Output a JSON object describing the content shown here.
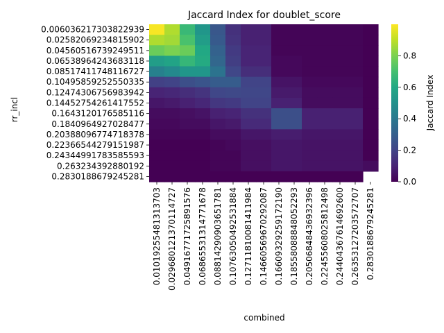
{
  "chart_data": {
    "type": "heatmap",
    "title": "Jaccard Index for doublet_score",
    "xlabel": "combined",
    "ylabel": "rr_incl",
    "x_categories": [
      "0.010192554813137​03",
      "0.029680121370114727",
      "0.04916771725891576",
      "0.06865531314771678",
      "0.08814290903651781",
      "0.10763050492531884",
      "0.12711810081411984",
      "0.14660569670292087",
      "0.16609329259172190",
      "0.18558088848052293",
      "0.20506848436932396",
      "0.22455608025812498",
      "0.24404367614692600",
      "0.26353127203572707",
      "0.2830188679245281"
    ],
    "y_categories": [
      "0.006036217303822939",
      "0.02582069234815902",
      "0.04560516739249511",
      "0.06538964243683118",
      "0.08517411748116727",
      "0.10495859252550335",
      "0.12474306756983942",
      "0.14452754261417552",
      "0.1643120176585116",
      "0.1840964927028477",
      "0.20388096774718378",
      "0.22366544279151987",
      "0.24344991783585593",
      "0.263234392880192",
      "0.2830188679245281"
    ],
    "values": [
      [
        0.99,
        0.88,
        0.67,
        0.52,
        0.27,
        0.14,
        0.09,
        0.09,
        0.01,
        0.01,
        0.01,
        0.01,
        0.01,
        0.01,
        0.0
      ],
      [
        0.88,
        0.86,
        0.71,
        0.55,
        0.28,
        0.15,
        0.09,
        0.09,
        0.01,
        0.01,
        0.01,
        0.01,
        0.01,
        0.01,
        0.0
      ],
      [
        0.77,
        0.8,
        0.77,
        0.6,
        0.31,
        0.17,
        0.1,
        0.1,
        0.01,
        0.01,
        0.01,
        0.01,
        0.01,
        0.01,
        0.0
      ],
      [
        0.55,
        0.58,
        0.66,
        0.61,
        0.33,
        0.18,
        0.1,
        0.1,
        0.02,
        0.02,
        0.01,
        0.01,
        0.01,
        0.01,
        0.0
      ],
      [
        0.43,
        0.47,
        0.52,
        0.52,
        0.38,
        0.21,
        0.13,
        0.13,
        0.02,
        0.02,
        0.01,
        0.01,
        0.01,
        0.01,
        0.0
      ],
      [
        0.19,
        0.2,
        0.24,
        0.26,
        0.29,
        0.29,
        0.2,
        0.2,
        0.05,
        0.05,
        0.02,
        0.02,
        0.02,
        0.02,
        0.0
      ],
      [
        0.1,
        0.11,
        0.13,
        0.15,
        0.21,
        0.22,
        0.21,
        0.21,
        0.07,
        0.07,
        0.03,
        0.03,
        0.03,
        0.03,
        0.0
      ],
      [
        0.06,
        0.07,
        0.09,
        0.11,
        0.16,
        0.17,
        0.2,
        0.2,
        0.09,
        0.09,
        0.03,
        0.03,
        0.03,
        0.03,
        0.0
      ],
      [
        0.03,
        0.03,
        0.04,
        0.05,
        0.09,
        0.1,
        0.14,
        0.14,
        0.24,
        0.24,
        0.09,
        0.09,
        0.09,
        0.09,
        0.0
      ],
      [
        0.02,
        0.02,
        0.03,
        0.03,
        0.06,
        0.07,
        0.12,
        0.12,
        0.24,
        0.24,
        0.09,
        0.09,
        0.09,
        0.09,
        0.0
      ],
      [
        0.01,
        0.01,
        0.01,
        0.01,
        0.03,
        0.03,
        0.06,
        0.06,
        0.08,
        0.08,
        0.06,
        0.06,
        0.06,
        0.06,
        0.0
      ],
      [
        0.0,
        0.0,
        0.0,
        0.0,
        0.01,
        0.02,
        0.04,
        0.04,
        0.06,
        0.06,
        0.05,
        0.05,
        0.05,
        0.05,
        0.0
      ],
      [
        0.0,
        0.0,
        0.0,
        0.0,
        0.01,
        0.01,
        0.04,
        0.04,
        0.06,
        0.06,
        0.05,
        0.05,
        0.05,
        0.05,
        0.0
      ],
      [
        0.0,
        0.0,
        0.0,
        0.0,
        0.01,
        0.01,
        0.04,
        0.04,
        0.06,
        0.06,
        0.05,
        0.05,
        0.05,
        0.05,
        0.03
      ],
      [
        0.0,
        0.0,
        0.0,
        0.0,
        0.0,
        0.0,
        0.0,
        0.0,
        0.0,
        0.0,
        0.0,
        0.0,
        0.0,
        0.0,
        null
      ]
    ],
    "colormap": "viridis",
    "colorbar": {
      "label": "Jaccard Index",
      "range": [
        0.0,
        1.0
      ],
      "ticks": [
        "0.0",
        "0.2",
        "0.4",
        "0.6",
        "0.8"
      ]
    },
    "grid": false,
    "legend": "colorbar-right"
  }
}
